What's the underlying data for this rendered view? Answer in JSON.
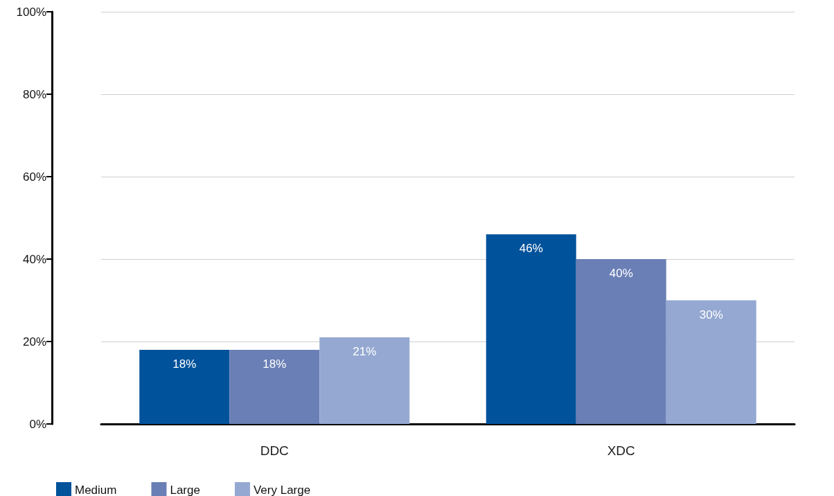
{
  "chart_data": {
    "type": "bar",
    "categories": [
      "DDC",
      "XDC"
    ],
    "series": [
      {
        "name": "Medium",
        "color": "#00529b",
        "values": [
          18,
          46
        ],
        "value_labels": [
          "18%",
          "46%"
        ]
      },
      {
        "name": "Large",
        "color": "#6a7fb5",
        "values": [
          18,
          40
        ],
        "value_labels": [
          "18%",
          "40%"
        ]
      },
      {
        "name": "Very Large",
        "color": "#94a8d1",
        "values": [
          21,
          30
        ],
        "value_labels": [
          "21%",
          "30%"
        ]
      }
    ],
    "ylim": [
      0,
      100
    ],
    "yticks": [
      {
        "value": 0,
        "label": "0%"
      },
      {
        "value": 20,
        "label": "20%"
      },
      {
        "value": 40,
        "label": "40%"
      },
      {
        "value": 60,
        "label": "60%"
      },
      {
        "value": 80,
        "label": "80%"
      },
      {
        "value": 100,
        "label": "100%"
      }
    ],
    "grid": "y",
    "legend": "bottom left"
  }
}
